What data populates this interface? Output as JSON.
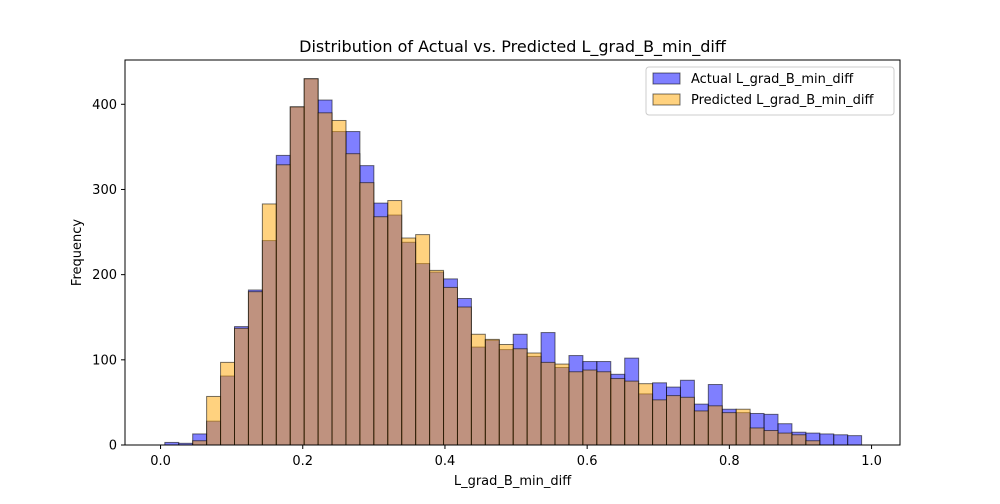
{
  "chart_data": {
    "type": "bar",
    "subtype": "histogram",
    "title": "Distribution of Actual vs. Predicted L_grad_B_min_diff",
    "xlabel": "L_grad_B_min_diff",
    "ylabel": "Frequency",
    "xlim": [
      -0.05,
      1.04
    ],
    "ylim": [
      0,
      452
    ],
    "xticks": [
      0.0,
      0.2,
      0.4,
      0.6,
      0.8,
      1.0
    ],
    "xtick_labels": [
      "0.0",
      "0.2",
      "0.4",
      "0.6",
      "0.8",
      "1.0"
    ],
    "yticks": [
      0,
      100,
      200,
      300,
      400
    ],
    "ytick_labels": [
      "0",
      "100",
      "200",
      "300",
      "400"
    ],
    "grid": false,
    "legend_position": "top-right",
    "series": [
      {
        "name": "Actual L_grad_B_min_diff",
        "color": "#0000ff",
        "alpha": 0.5,
        "bin_edges": [
          0.006,
          0.0256,
          0.0452,
          0.0648,
          0.0844,
          0.104,
          0.1236,
          0.1432,
          0.1628,
          0.1824,
          0.202,
          0.2216,
          0.2412,
          0.2608,
          0.2804,
          0.3,
          0.3196,
          0.3392,
          0.3588,
          0.3784,
          0.398,
          0.4176,
          0.4372,
          0.4568,
          0.4764,
          0.496,
          0.5156,
          0.5352,
          0.5548,
          0.5744,
          0.594,
          0.6136,
          0.6332,
          0.6528,
          0.6724,
          0.692,
          0.7116,
          0.7312,
          0.7508,
          0.7704,
          0.79,
          0.8096,
          0.8292,
          0.8488,
          0.8684,
          0.888,
          0.9076,
          0.9272,
          0.9468,
          0.9664,
          0.986
        ],
        "values": [
          3,
          2,
          13,
          28,
          81,
          139,
          182,
          240,
          340,
          397,
          430,
          405,
          368,
          368,
          328,
          284,
          270,
          238,
          213,
          203,
          195,
          172,
          115,
          123,
          112,
          130,
          104,
          132,
          91,
          105,
          98,
          98,
          83,
          102,
          60,
          73,
          68,
          76,
          48,
          71,
          42,
          38,
          37,
          36,
          25,
          15,
          14,
          13,
          12,
          11
        ]
      },
      {
        "name": "Predicted L_grad_B_min_diff",
        "color": "#ffa500",
        "alpha": 0.5,
        "bin_edges": [
          0.006,
          0.0256,
          0.0452,
          0.0648,
          0.0844,
          0.104,
          0.1236,
          0.1432,
          0.1628,
          0.1824,
          0.202,
          0.2216,
          0.2412,
          0.2608,
          0.2804,
          0.3,
          0.3196,
          0.3392,
          0.3588,
          0.3784,
          0.398,
          0.4176,
          0.4372,
          0.4568,
          0.4764,
          0.496,
          0.5156,
          0.5352,
          0.5548,
          0.5744,
          0.594,
          0.6136,
          0.6332,
          0.6528,
          0.6724,
          0.692,
          0.7116,
          0.7312,
          0.7508,
          0.7704,
          0.79,
          0.8096,
          0.8292,
          0.8488,
          0.8684,
          0.888,
          0.9076,
          0.9272,
          0.9468,
          0.9664,
          0.986
        ],
        "values": [
          0,
          0,
          5,
          57,
          97,
          137,
          180,
          283,
          329,
          397,
          430,
          390,
          381,
          342,
          308,
          268,
          287,
          243,
          247,
          205,
          185,
          162,
          130,
          124,
          118,
          113,
          108,
          97,
          95,
          86,
          88,
          86,
          78,
          75,
          72,
          53,
          58,
          56,
          40,
          46,
          38,
          42,
          20,
          17,
          14,
          12,
          5,
          0,
          0,
          0
        ]
      }
    ]
  }
}
